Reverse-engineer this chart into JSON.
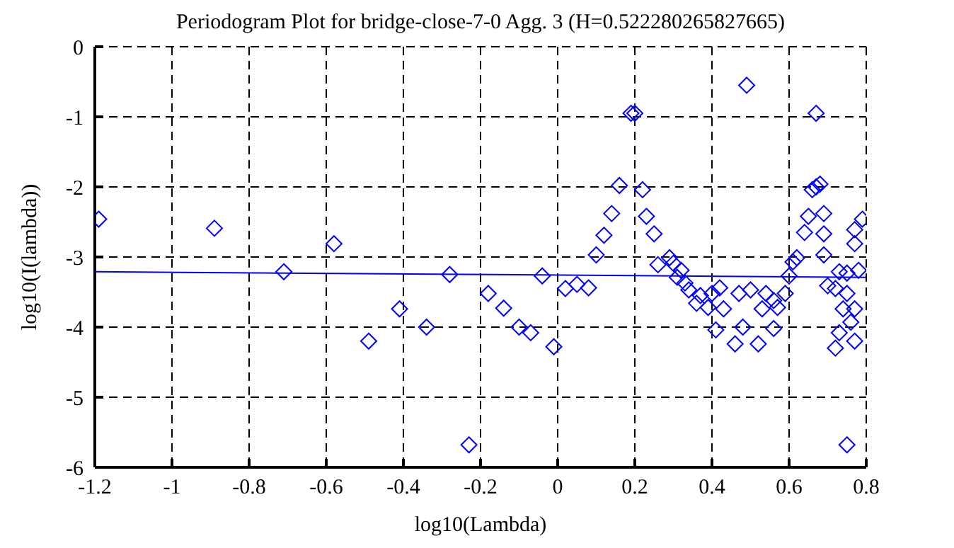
{
  "chart_data": {
    "type": "scatter",
    "title": "Periodogram Plot for bridge-close-7-0 Agg. 3 (H=0.522280265827665)",
    "xlabel": "log10(Lambda)",
    "ylabel": "log10(I(lambda))",
    "xlim": [
      -1.2,
      0.8
    ],
    "xticks": [
      -1.2,
      -1,
      -0.8,
      -0.6,
      -0.4,
      -0.2,
      0,
      0.2,
      0.4,
      0.6,
      0.8
    ],
    "ylim": [
      -6,
      0
    ],
    "yticks": [
      -6,
      -5,
      -4,
      -3,
      -2,
      -1,
      0
    ],
    "grid": true,
    "legend": false,
    "series": [
      {
        "color": "#0000ff",
        "marker": "diamond",
        "x": [
          -1.19,
          -0.89,
          -0.71,
          -0.58,
          -0.49,
          -0.41,
          -0.34,
          -0.28,
          -0.23,
          -0.18,
          -0.14,
          -0.1,
          -0.07,
          -0.04,
          -0.01,
          0.02,
          0.05,
          0.08,
          0.1,
          0.12,
          0.14,
          0.16,
          0.19,
          0.2,
          0.22,
          0.23,
          0.25,
          0.26,
          0.29,
          0.3,
          0.31,
          0.32,
          0.33,
          0.34,
          0.36,
          0.37,
          0.39,
          0.4,
          0.41,
          0.42,
          0.43,
          0.46,
          0.47,
          0.48,
          0.49,
          0.5,
          0.52,
          0.53,
          0.54,
          0.56,
          0.56,
          0.57,
          0.59,
          0.6,
          0.61,
          0.62,
          0.64,
          0.65,
          0.66,
          0.67,
          0.67,
          0.68,
          0.69,
          0.69,
          0.69,
          0.7,
          0.72,
          0.72,
          0.73,
          0.73,
          0.74,
          0.75,
          0.75,
          0.75,
          0.76,
          0.77,
          0.77,
          0.77,
          0.77,
          0.78,
          0.79
        ],
        "values": [
          -2.46,
          -2.59,
          -3.21,
          -2.81,
          -4.2,
          -3.74,
          -4.0,
          -3.25,
          -5.68,
          -3.52,
          -3.73,
          -4.0,
          -4.08,
          -3.27,
          -4.28,
          -3.45,
          -3.39,
          -3.44,
          -2.97,
          -2.69,
          -2.38,
          -1.98,
          -0.95,
          -0.95,
          -2.04,
          -2.42,
          -2.67,
          -3.11,
          -3.01,
          -3.09,
          -3.29,
          -3.19,
          -3.37,
          -3.47,
          -3.66,
          -3.55,
          -3.72,
          -3.52,
          -4.04,
          -3.44,
          -3.74,
          -4.24,
          -3.52,
          -4.0,
          -0.55,
          -3.47,
          -4.24,
          -3.74,
          -3.52,
          -4.02,
          -3.62,
          -3.72,
          -3.52,
          -3.27,
          -3.07,
          -3.01,
          -2.65,
          -2.42,
          -2.04,
          -0.95,
          -2.0,
          -1.96,
          -2.38,
          -2.67,
          -2.97,
          -3.41,
          -3.45,
          -4.3,
          -3.21,
          -4.08,
          -3.74,
          -3.52,
          -3.23,
          -5.68,
          -3.93,
          -3.74,
          -4.2,
          -2.81,
          -2.61,
          -3.19,
          -2.46
        ]
      },
      {
        "type": "line",
        "color": "#0000ff",
        "marker": "none",
        "x": [
          -1.2,
          0.8
        ],
        "values": [
          -3.21,
          -3.29
        ]
      }
    ]
  }
}
